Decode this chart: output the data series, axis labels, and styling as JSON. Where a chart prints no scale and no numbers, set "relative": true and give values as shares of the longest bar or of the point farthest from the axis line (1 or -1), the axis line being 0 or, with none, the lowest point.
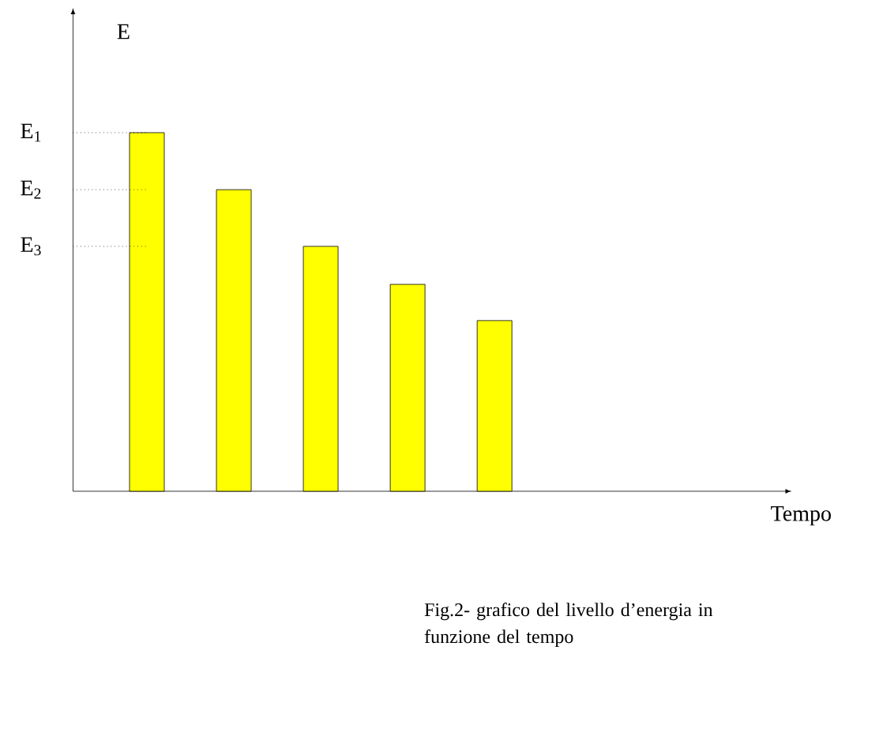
{
  "chart_data": {
    "type": "bar",
    "relative": true,
    "ylabel": "E",
    "categories": [
      null,
      null,
      null,
      null,
      null
    ],
    "values": [
      1,
      0.841,
      0.683,
      0.577,
      0.476
    ],
    "color": "#ffff00",
    "ref_lines": [
      {
        "axis": "y",
        "value": 1,
        "label": "E$_{1}$",
        "line_style": "dotted"
      },
      {
        "axis": "y",
        "value": 0.841,
        "label": "E$_{2}$",
        "line_style": "dotted"
      },
      {
        "axis": "y",
        "value": 0.683,
        "label": "E$_{3}$",
        "line_style": "dotted"
      }
    ],
    "annotations": [
      "Tempo",
      "Fig.2- grafico del livello d’energia in funzione del tempo"
    ]
  }
}
